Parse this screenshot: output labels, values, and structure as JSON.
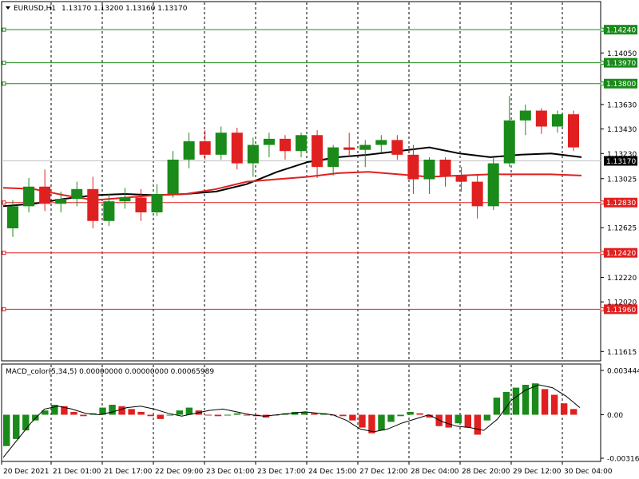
{
  "chart_data": [
    {
      "type": "candlestick",
      "header": {
        "symbol_timeframe": "EURUSD,H1",
        "ohlc": "1.13170 1.13200 1.13160 1.13170"
      },
      "ylim": [
        1.11552,
        1.14456
      ],
      "y_ticks": [
        "1.14050",
        "1.13630",
        "1.13430",
        "1.13230",
        "1.13025",
        "1.12625",
        "1.12220",
        "1.12020",
        "1.11615"
      ],
      "x_ticks": [
        "20 Dec 2021",
        "21 Dec 01:00",
        "21 Dec 17:00",
        "22 Dec 09:00",
        "23 Dec 01:00",
        "23 Dec 17:00",
        "24 Dec 15:00",
        "27 Dec 12:00",
        "28 Dec 04:00",
        "28 Dec 20:00",
        "29 Dec 12:00",
        "30 Dec 04:00"
      ],
      "current_price": "1.13170",
      "levels": [
        {
          "label": "1.14240",
          "value": 1.1424,
          "color": "#1a8a1a"
        },
        {
          "label": "1.13970",
          "value": 1.1397,
          "color": "#1a8a1a"
        },
        {
          "label": "1.13800",
          "value": 1.138,
          "color": "#1a8a1a"
        },
        {
          "label": "1.12830",
          "value": 1.1283,
          "color": "#e02020"
        },
        {
          "label": "1.12420",
          "value": 1.1242,
          "color": "#e02020"
        },
        {
          "label": "1.11960",
          "value": 1.1196,
          "color": "#e02020"
        }
      ],
      "series": [
        {
          "color": "#000000",
          "values": [
            1.128,
            1.1282,
            1.1286,
            1.1289,
            1.129,
            1.1289,
            1.129,
            1.1292,
            1.1298,
            1.1308,
            1.1316,
            1.132,
            1.1322,
            1.1325,
            1.1328,
            1.1323,
            1.132,
            1.1322,
            1.1323,
            1.132
          ]
        },
        {
          "color": "#e02020",
          "values": [
            1.1295,
            1.1294,
            1.1289,
            1.1285,
            1.1287,
            1.1289,
            1.129,
            1.1294,
            1.13,
            1.1302,
            1.1304,
            1.1307,
            1.1308,
            1.1306,
            1.1304,
            1.1305,
            1.1306,
            1.1306,
            1.1306,
            1.1305
          ]
        }
      ],
      "candles": [
        [
          1.1262,
          1.1285,
          1.1255,
          1.128
        ],
        [
          1.128,
          1.1303,
          1.1275,
          1.1296
        ],
        [
          1.1296,
          1.131,
          1.1276,
          1.1282
        ],
        [
          1.1282,
          1.1292,
          1.1275,
          1.1286
        ],
        [
          1.1286,
          1.13,
          1.128,
          1.1294
        ],
        [
          1.1294,
          1.1304,
          1.1262,
          1.1268
        ],
        [
          1.1268,
          1.129,
          1.1264,
          1.1284
        ],
        [
          1.1284,
          1.1295,
          1.1278,
          1.1287
        ],
        [
          1.1287,
          1.1294,
          1.1268,
          1.1275
        ],
        [
          1.1275,
          1.1298,
          1.1272,
          1.129
        ],
        [
          1.129,
          1.1325,
          1.1287,
          1.1318
        ],
        [
          1.1318,
          1.134,
          1.1311,
          1.1333
        ],
        [
          1.1333,
          1.1342,
          1.1318,
          1.1322
        ],
        [
          1.1322,
          1.1345,
          1.1318,
          1.134
        ],
        [
          1.134,
          1.1344,
          1.131,
          1.1315
        ],
        [
          1.1315,
          1.1336,
          1.1304,
          1.133
        ],
        [
          1.133,
          1.134,
          1.132,
          1.1335
        ],
        [
          1.1335,
          1.1338,
          1.1318,
          1.1325
        ],
        [
          1.1325,
          1.134,
          1.132,
          1.1338
        ],
        [
          1.1338,
          1.1342,
          1.1303,
          1.1312
        ],
        [
          1.1312,
          1.133,
          1.1305,
          1.1328
        ],
        [
          1.1328,
          1.134,
          1.132,
          1.1326
        ],
        [
          1.1326,
          1.1334,
          1.1312,
          1.133
        ],
        [
          1.133,
          1.1338,
          1.1324,
          1.1334
        ],
        [
          1.1334,
          1.1338,
          1.1318,
          1.1322
        ],
        [
          1.1322,
          1.133,
          1.129,
          1.1302
        ],
        [
          1.1302,
          1.132,
          1.129,
          1.1318
        ],
        [
          1.1318,
          1.132,
          1.1296,
          1.1305
        ],
        [
          1.1305,
          1.1312,
          1.1292,
          1.13
        ],
        [
          1.13,
          1.1306,
          1.127,
          1.128
        ],
        [
          1.128,
          1.132,
          1.1277,
          1.1315
        ],
        [
          1.1315,
          1.137,
          1.1312,
          1.135
        ],
        [
          1.135,
          1.1363,
          1.1338,
          1.1358
        ],
        [
          1.1358,
          1.136,
          1.1339,
          1.1345
        ],
        [
          1.1345,
          1.1358,
          1.134,
          1.1355
        ],
        [
          1.1355,
          1.1358,
          1.1325,
          1.1328
        ]
      ]
    },
    {
      "type": "bar",
      "title": "MACD_color(5,34,5) 0.00000000 0.00000000 0.00065989",
      "ylim": [
        -0.003164,
        0.003444
      ],
      "y_ticks": [
        "0.003444",
        "0.00",
        "-0.003164"
      ],
      "up_color": "#1a8a1a",
      "down_color": "#e02020",
      "values": [
        -0.0022,
        -0.0017,
        -0.0011,
        -0.0004,
        0.0003,
        0.0007,
        0.0006,
        0.0002,
        -0.0001,
        0.0001,
        0.0005,
        0.0007,
        0.0006,
        0.0004,
        0.0002,
        -0.0001,
        -0.0003,
        0.0,
        0.0003,
        0.0005,
        0.0003,
        0.0,
        -0.0001,
        0.0,
        0.0001,
        0.0,
        -0.0001,
        -0.0002,
        0.0,
        0.0001,
        0.0002,
        0.0002,
        0.0001,
        0.0001,
        0.0,
        -0.0001,
        -0.0004,
        -0.0009,
        -0.0013,
        -0.0011,
        -0.0005,
        -0.0001,
        0.0002,
        0.0001,
        -0.0002,
        -0.0008,
        -0.0009,
        -0.0006,
        -0.0009,
        -0.0014,
        -0.0004,
        0.0012,
        0.0016,
        0.0019,
        0.0021,
        0.0022,
        0.0018,
        0.0014,
        0.0008,
        0.0004
      ],
      "signal": [
        -0.003,
        -0.0018,
        -0.0006,
        0.0004,
        0.0006,
        0.0004,
        0.0001,
        0.0,
        0.0002,
        0.0005,
        0.0006,
        0.0004,
        0.0001,
        -0.0001,
        0.0001,
        0.0003,
        0.0004,
        0.0002,
        0.0,
        -0.0001,
        0.0,
        0.0001,
        0.0002,
        0.0001,
        0.0,
        -0.0004,
        -0.001,
        -0.0012,
        -0.001,
        -0.0006,
        -0.0003,
        0.0,
        -0.0005,
        -0.0008,
        -0.0009,
        -0.0011,
        -0.0003,
        0.001,
        0.0017,
        0.0021,
        0.0019,
        0.0013,
        0.0005
      ],
      "current_value": 0.00065989
    }
  ]
}
